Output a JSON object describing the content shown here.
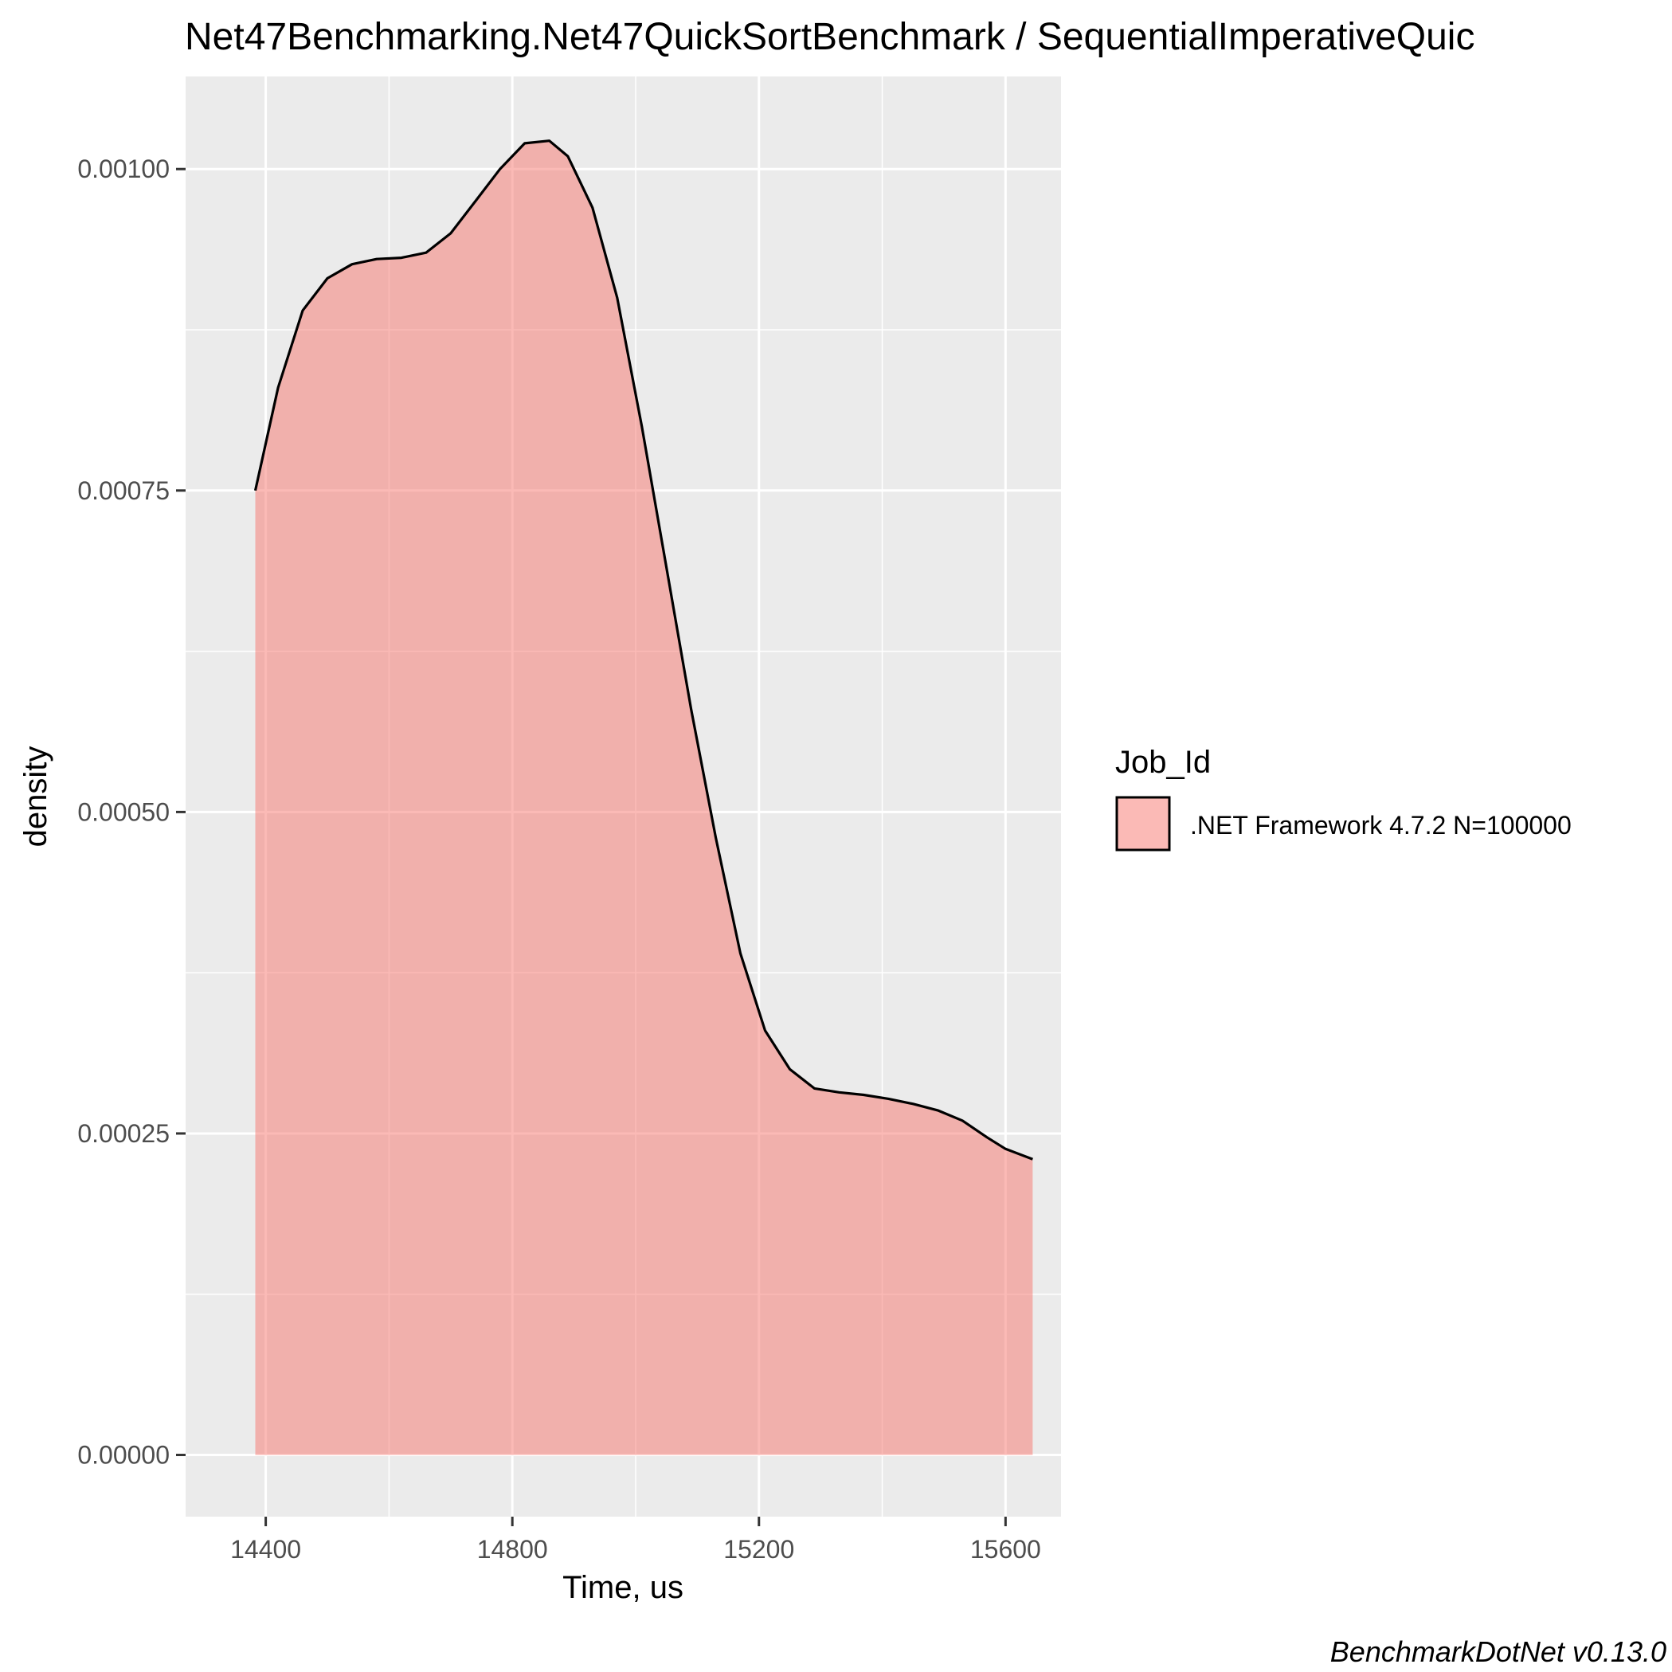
{
  "chart_data": {
    "type": "area",
    "title": "Net47Benchmarking.Net47QuickSortBenchmark / SequentialImperativeQuic",
    "xlabel": "Time, us",
    "ylabel": "density",
    "xlim": [
      14270,
      15690
    ],
    "ylim": [
      -4.8e-05,
      0.001072
    ],
    "x_ticks": [
      14400,
      14800,
      15200,
      15600
    ],
    "x_tick_labels": [
      "14400",
      "14800",
      "15200",
      "15600"
    ],
    "y_ticks": [
      0.0,
      0.00025,
      0.0005,
      0.00075,
      0.001
    ],
    "y_tick_labels": [
      "0.00000",
      "0.00025",
      "0.00050",
      "0.00075",
      "0.00100"
    ],
    "grid": true,
    "legend": {
      "title": "Job_Id",
      "position": "right"
    },
    "series": [
      {
        "name": ".NET Framework 4.7.2 N=100000",
        "color": "#F8766D",
        "x": [
          14383,
          14420,
          14460,
          14500,
          14540,
          14580,
          14620,
          14660,
          14700,
          14740,
          14780,
          14820,
          14860,
          14890,
          14930,
          14970,
          15010,
          15050,
          15090,
          15130,
          15170,
          15210,
          15250,
          15290,
          15330,
          15370,
          15410,
          15450,
          15490,
          15530,
          15570,
          15600,
          15644
        ],
        "values": [
          0.00075,
          0.00083,
          0.00089,
          0.000915,
          0.000926,
          0.00093,
          0.000931,
          0.000935,
          0.00095,
          0.000975,
          0.001,
          0.00102,
          0.001022,
          0.00101,
          0.00097,
          0.0009,
          0.0008,
          0.00069,
          0.00058,
          0.00048,
          0.00039,
          0.00033,
          0.0003,
          0.000285,
          0.000282,
          0.00028,
          0.000277,
          0.000273,
          0.000268,
          0.00026,
          0.000247,
          0.000238,
          0.00023
        ]
      }
    ]
  },
  "caption": "BenchmarkDotNet v0.13.0",
  "colors": {
    "panel_bg": "#EBEBEB",
    "grid": "#FFFFFF",
    "fill": "#F8766D",
    "line": "#000000"
  }
}
